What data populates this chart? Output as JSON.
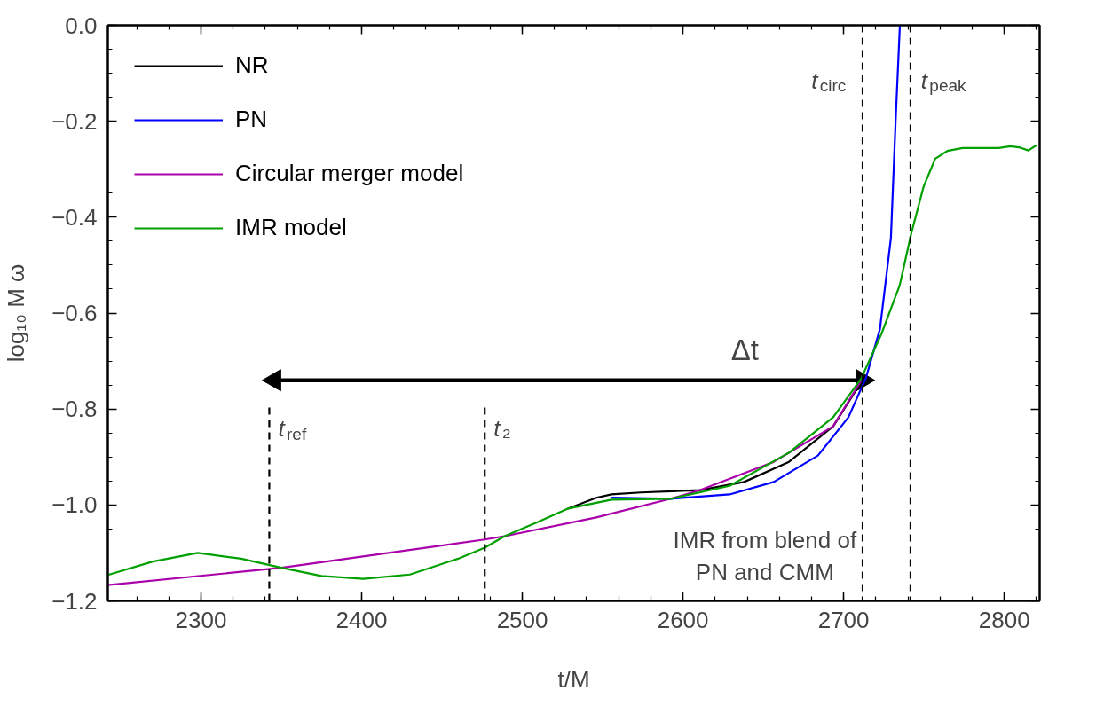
{
  "chart_data": {
    "type": "line",
    "xlabel": "t/M",
    "ylabel": "log₁₀ M ω",
    "xlim": [
      2242,
      2822
    ],
    "ylim": [
      -1.2,
      0.0
    ],
    "xticks": [
      2300,
      2400,
      2500,
      2600,
      2700,
      2800
    ],
    "yticks": [
      {
        "value": -1.2,
        "label": "−1.2"
      },
      {
        "value": -1.0,
        "label": "−1.0"
      },
      {
        "value": -0.8,
        "label": "−0.8"
      },
      {
        "value": -0.6,
        "label": "−0.6"
      },
      {
        "value": -0.4,
        "label": "−0.4"
      },
      {
        "value": -0.2,
        "label": "−0.2"
      },
      {
        "value": 0.0,
        "label": "0.0"
      }
    ],
    "grid": false,
    "legend": "top left",
    "line_style": "solid",
    "marker": "none",
    "series": [
      {
        "color": "#000000",
        "marker": "triangle",
        "x": [
          2345.8,
          2711.7
        ],
        "values": [
          -0.74,
          -0.74
        ]
      },
      {
        "name": "NR",
        "color": "#000000",
        "x": [
          2528,
          2546,
          2555.5,
          2573.7,
          2610.7,
          2638,
          2666,
          2693.5,
          2711
        ],
        "values": [
          -1.008,
          -0.985,
          -0.978,
          -0.974,
          -0.969,
          -0.952,
          -0.91,
          -0.836,
          -0.743
        ]
      },
      {
        "name": "PN",
        "color": "#0000ff",
        "x": [
          2555.5,
          2592.5,
          2629,
          2656.5,
          2684,
          2703,
          2714,
          2722.6,
          2729.4,
          2732.4,
          2735
        ],
        "values": [
          -0.985,
          -0.987,
          -0.978,
          -0.952,
          -0.897,
          -0.817,
          -0.734,
          -0.633,
          -0.444,
          -0.196,
          0.0
        ]
      },
      {
        "name": "Circular merger model",
        "color": "#aa00aa",
        "x": [
          2242,
          2350,
          2476.6,
          2489,
          2546,
          2592.5,
          2610.7,
          2656.5,
          2693.5,
          2711
        ],
        "values": [
          -1.167,
          -1.131,
          -1.072,
          -1.065,
          -1.026,
          -0.987,
          -0.969,
          -0.91,
          -0.836,
          -0.74
        ]
      },
      {
        "name": "IMR model",
        "color": "#00a000",
        "x": [
          2242,
          2270,
          2298,
          2325,
          2350,
          2375,
          2401,
          2430,
          2460,
          2476.6,
          2489,
          2510,
          2528,
          2555.5,
          2592.5,
          2629,
          2666,
          2693.5,
          2711,
          2723.8,
          2734.9,
          2742,
          2749.8,
          2757,
          2764.5,
          2774,
          2796.5,
          2803.9,
          2810,
          2815,
          2820
        ],
        "values": [
          -1.146,
          -1.118,
          -1.1,
          -1.112,
          -1.131,
          -1.148,
          -1.154,
          -1.145,
          -1.112,
          -1.089,
          -1.065,
          -1.035,
          -1.008,
          -0.989,
          -0.987,
          -0.96,
          -0.891,
          -0.817,
          -0.736,
          -0.641,
          -0.542,
          -0.435,
          -0.336,
          -0.278,
          -0.262,
          -0.256,
          -0.256,
          -0.252,
          -0.255,
          -0.261,
          -0.25
        ]
      },
      {
        "color": "#000000",
        "line_style": "dashed",
        "x": [
          2342.5,
          2342.5
        ],
        "values": [
          -1.2,
          -0.789
        ]
      },
      {
        "color": "#000000",
        "line_style": "dashed",
        "x": [
          2476.6,
          2476.6
        ],
        "values": [
          -1.2,
          -0.789
        ]
      }
    ],
    "ref_lines": [
      {
        "axis": "x",
        "value": 2711.7,
        "label": "t$_{circ}$",
        "color": "#000000",
        "line_style": "dashed"
      },
      {
        "axis": "x",
        "value": 2741.5,
        "label": "t$_{peak}$",
        "color": "#000000",
        "line_style": "dashed"
      }
    ],
    "annotations": [
      {
        "text": "t$_{ref}$",
        "x": 2342.5,
        "y": -0.789
      },
      {
        "text": "t₂",
        "x": 2476.6,
        "y": -0.789
      },
      "Δt",
      "IMR from blend of\nPN and CMM"
    ]
  }
}
